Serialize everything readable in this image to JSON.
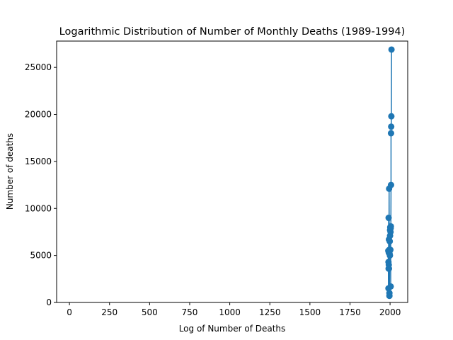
{
  "chart_data": {
    "type": "line",
    "title": "Logarithmic Distribution of Number of Monthly Deaths (1989-1994)",
    "xlabel": "Log of Number of Deaths",
    "ylabel": "Number of deaths",
    "xlim": [
      -80,
      2110
    ],
    "ylim": [
      0,
      27800
    ],
    "xticks": [
      0,
      250,
      500,
      750,
      1000,
      1250,
      1500,
      1750,
      2000
    ],
    "yticks": [
      0,
      5000,
      10000,
      15000,
      20000,
      25000
    ],
    "grid": false,
    "marker": "circle",
    "color": "#1f77b4",
    "series": [
      {
        "points": [
          [
            1989,
            5500
          ],
          [
            1990,
            1500
          ],
          [
            1990,
            4300
          ],
          [
            1991,
            3600
          ],
          [
            1991,
            9000
          ],
          [
            1992,
            5300
          ],
          [
            1992,
            4000
          ],
          [
            1993,
            6700
          ],
          [
            1993,
            3600
          ],
          [
            1994,
            12100
          ],
          [
            1995,
            5600
          ],
          [
            1996,
            1000
          ],
          [
            1996,
            700
          ],
          [
            1997,
            5200
          ],
          [
            1998,
            6500
          ],
          [
            1999,
            5000
          ],
          [
            2000,
            7100
          ],
          [
            2000,
            7700
          ],
          [
            2001,
            8000
          ],
          [
            2002,
            5600
          ],
          [
            2003,
            7500
          ],
          [
            2004,
            1700
          ],
          [
            2004,
            7900
          ],
          [
            2005,
            8100
          ],
          [
            2006,
            12500
          ],
          [
            2006,
            18000
          ],
          [
            2007,
            18700
          ],
          [
            2008,
            19800
          ],
          [
            2009,
            26900
          ]
        ]
      }
    ]
  }
}
